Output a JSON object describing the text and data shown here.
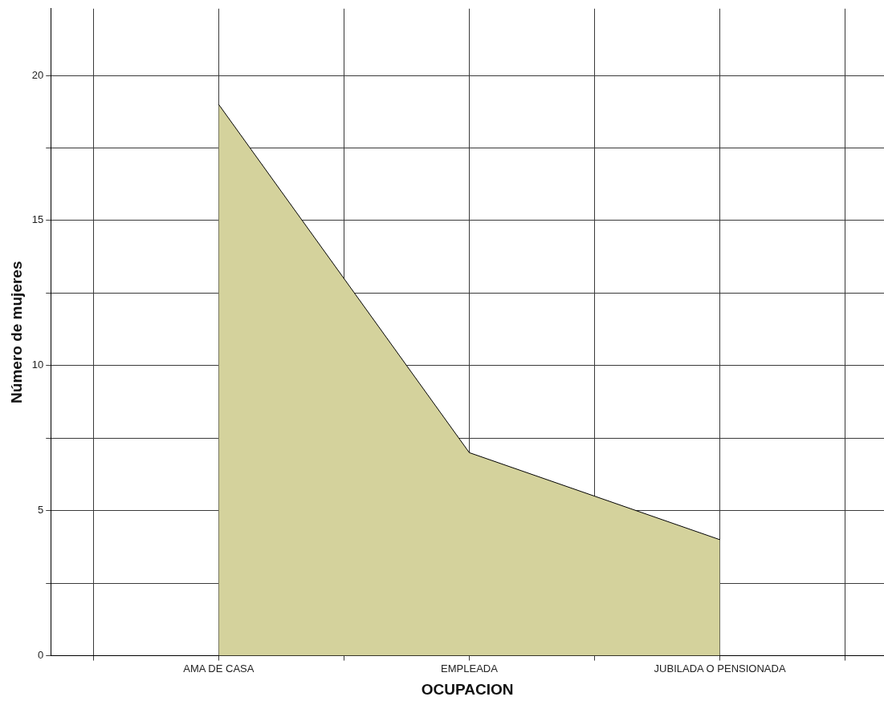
{
  "chart_data": {
    "type": "area",
    "xlabel": "OCUPACION",
    "ylabel": "Número de mujeres",
    "categories": [
      "AMA DE CASA",
      "EMPLEADA",
      "JUBILADA O PENSIONADA"
    ],
    "series": [
      {
        "color": "#d4d29c",
        "values": [
          19,
          7,
          4
        ]
      }
    ],
    "ylim": [
      0,
      22.3
    ],
    "yticks": [
      0,
      {
        "value": 2.5,
        "label": null
      },
      5,
      {
        "value": 7.5,
        "label": null
      },
      10,
      {
        "value": 12.5,
        "label": null
      },
      15,
      {
        "value": 17.5,
        "label": null
      },
      20
    ],
    "grid": true,
    "legend": false,
    "marker": "none",
    "line_style": "solid"
  }
}
